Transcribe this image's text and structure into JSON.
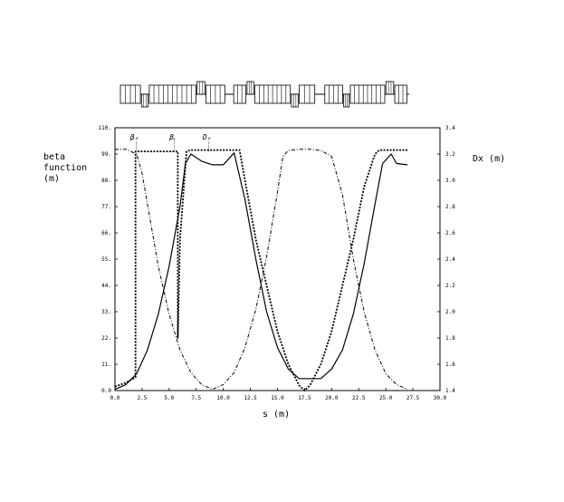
{
  "lattice": {
    "caption": "",
    "cells": [
      {
        "x0": 0.0,
        "x1": 1.8,
        "type": "dipole"
      },
      {
        "x0": 1.9,
        "x1": 2.5,
        "type": "quad-down"
      },
      {
        "x0": 2.6,
        "x1": 6.8,
        "type": "dipole"
      },
      {
        "x0": 6.9,
        "x1": 7.6,
        "type": "quad-up"
      },
      {
        "x0": 7.7,
        "x1": 9.4,
        "type": "dipole"
      },
      {
        "x0": 10.2,
        "x1": 11.3,
        "type": "dipole"
      },
      {
        "x0": 11.4,
        "x1": 12.0,
        "type": "quad-up"
      },
      {
        "x0": 12.1,
        "x1": 15.3,
        "type": "dipole"
      },
      {
        "x0": 15.4,
        "x1": 16.0,
        "type": "quad-down"
      },
      {
        "x0": 16.1,
        "x1": 17.5,
        "type": "dipole"
      },
      {
        "x0": 18.4,
        "x1": 20.0,
        "type": "dipole"
      },
      {
        "x0": 20.1,
        "x1": 20.6,
        "type": "quad-down"
      },
      {
        "x0": 20.7,
        "x1": 23.8,
        "type": "dipole"
      },
      {
        "x0": 23.9,
        "x1": 24.6,
        "type": "quad-up"
      },
      {
        "x0": 24.7,
        "x1": 25.8,
        "type": "dipole"
      }
    ]
  },
  "chart_data": {
    "type": "line",
    "title": "",
    "xlabel": "s  (m)",
    "ylabel_lines": [
      "beta",
      "function",
      "(m)"
    ],
    "y2label": "Dx  (m)",
    "xlim": [
      0.0,
      30.0
    ],
    "ylim": [
      0.0,
      110.0
    ],
    "y2lim": [
      1.4,
      3.4
    ],
    "xticks": [
      "0.0",
      "2.5",
      "5.0",
      "7.5",
      "10.0",
      "12.5",
      "15.0",
      "17.5",
      "20.0",
      "22.5",
      "25.0",
      "27.5",
      "30.0"
    ],
    "yticks": [
      "0.0",
      "11.",
      "22.",
      "33.",
      "44.",
      "55.",
      "66.",
      "77.",
      "88.",
      "99.",
      "110."
    ],
    "y2ticks": [
      "1.4",
      "1.6",
      "1.8",
      "2.0",
      "2.2",
      "2.4",
      "2.6",
      "2.8",
      "3.0",
      "3.2",
      "3.4"
    ],
    "annotations": [
      {
        "text": "βₓ",
        "x": 1.8,
        "y": 105
      },
      {
        "text": "βᵧ",
        "x": 5.3,
        "y": 105
      },
      {
        "text": "Dₓ",
        "x": 8.5,
        "y": 105
      }
    ],
    "grid": false,
    "series": [
      {
        "name": "βₓ",
        "axis": "y",
        "style": "solid",
        "x": [
          0.0,
          1.0,
          2.0,
          3.0,
          4.0,
          5.0,
          6.0,
          6.5,
          7.0,
          8.0,
          9.0,
          10.0,
          11.0,
          12.0,
          13.0,
          14.0,
          15.0,
          16.0,
          17.0,
          18.0,
          19.0,
          20.0,
          21.0,
          22.0,
          23.0,
          24.0,
          24.7,
          25.5,
          26.0,
          27.0
        ],
        "y": [
          0.5,
          2.5,
          7.0,
          17.0,
          32.0,
          52.0,
          77.0,
          95.0,
          99.0,
          96.0,
          94.5,
          94.5,
          99.5,
          80.0,
          55.0,
          33.0,
          18.0,
          9.0,
          5.0,
          5.0,
          5.0,
          9.0,
          17.0,
          32.0,
          53.0,
          78.0,
          95.0,
          99.0,
          95.0,
          94.5
        ]
      },
      {
        "name": "βᵧ",
        "axis": "y",
        "style": "dash-dot",
        "x": [
          0.0,
          1.0,
          2.0,
          2.5,
          3.0,
          4.0,
          5.0,
          6.0,
          7.0,
          8.0,
          9.0,
          10.0,
          11.0,
          12.0,
          13.0,
          14.0,
          15.0,
          15.5,
          16.0,
          17.0,
          18.0,
          19.0,
          20.0,
          21.0,
          22.0,
          23.0,
          24.0,
          25.0,
          26.0,
          27.0
        ],
        "y": [
          101.0,
          101.0,
          99.0,
          91.0,
          78.0,
          52.0,
          32.0,
          17.0,
          7.5,
          2.5,
          0.5,
          2.5,
          7.5,
          18.0,
          34.0,
          56.0,
          83.0,
          98.0,
          100.5,
          101.0,
          101.0,
          100.5,
          98.0,
          82.0,
          55.0,
          33.0,
          17.0,
          7.0,
          2.5,
          0.5
        ]
      },
      {
        "name": "Dₓ",
        "axis": "y2",
        "style": "dotted-bold",
        "x": [
          0.0,
          1.0,
          1.9,
          1.9,
          3.0,
          4.0,
          5.0,
          5.8,
          5.8,
          6.0,
          6.6,
          7.0,
          8.0,
          9.0,
          10.0,
          11.0,
          11.5,
          12.0,
          13.0,
          14.0,
          15.0,
          16.0,
          17.0,
          17.5,
          18.0,
          19.0,
          20.0,
          21.0,
          22.0,
          23.0,
          24.0,
          24.4,
          24.6,
          25.5,
          27.0
        ],
        "y": [
          1.43,
          1.46,
          1.5,
          3.22,
          3.22,
          3.22,
          3.22,
          3.22,
          1.8,
          2.55,
          3.22,
          3.23,
          3.23,
          3.23,
          3.23,
          3.23,
          3.23,
          3.0,
          2.55,
          2.2,
          1.85,
          1.6,
          1.44,
          1.4,
          1.44,
          1.6,
          1.85,
          2.2,
          2.55,
          2.95,
          3.2,
          3.23,
          3.23,
          3.23,
          3.23
        ]
      }
    ]
  }
}
